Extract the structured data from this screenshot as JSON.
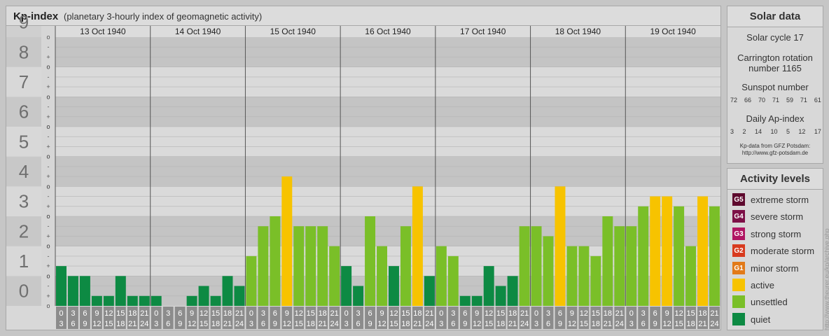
{
  "kp_panel": {
    "title": "Kp-index",
    "subtitle": "(planetary 3-hourly index of geomagnetic activity)"
  },
  "chart_data": {
    "type": "bar",
    "title": "Kp-index",
    "subtitle": "(planetary 3-hourly index of geomagnetic activity)",
    "ylim": [
      0,
      9
    ],
    "y_major_ticks": [
      "0",
      "1",
      "2",
      "3",
      "4",
      "5",
      "6",
      "7",
      "8",
      "9"
    ],
    "y_minor_ticks": [
      "o",
      "+",
      "-",
      "o"
    ],
    "days": [
      "13 Oct 1940",
      "14 Oct 1940",
      "15 Oct 1940",
      "16 Oct 1940",
      "17 Oct 1940",
      "18 Oct 1940",
      "19 Oct 1940"
    ],
    "interval_labels": [
      [
        "0",
        "3"
      ],
      [
        "3",
        "6"
      ],
      [
        "6",
        "9"
      ],
      [
        "9",
        "12"
      ],
      [
        "12",
        "15"
      ],
      [
        "15",
        "18"
      ],
      [
        "18",
        "21"
      ],
      [
        "21",
        "24"
      ]
    ],
    "values": [
      [
        1.333,
        1,
        1,
        0.333,
        0.333,
        1,
        0.333,
        0.333
      ],
      [
        0.333,
        0,
        0,
        0.333,
        0.667,
        0.333,
        1,
        0.667
      ],
      [
        1.667,
        2.667,
        3,
        4.333,
        2.667,
        2.667,
        2.667,
        2
      ],
      [
        1.333,
        0.667,
        3,
        2,
        1.333,
        2.667,
        4,
        1
      ],
      [
        2,
        1.667,
        0.333,
        0.333,
        1.333,
        0.667,
        1,
        2.667
      ],
      [
        2.667,
        2.333,
        4,
        2,
        2,
        1.667,
        3,
        2.667
      ],
      [
        2.667,
        3.333,
        3.667,
        3.667,
        3.333,
        2,
        3.667,
        3.333
      ]
    ],
    "levels": [
      [
        "quiet",
        "quiet",
        "quiet",
        "quiet",
        "quiet",
        "quiet",
        "quiet",
        "quiet"
      ],
      [
        "quiet",
        "quiet",
        "quiet",
        "quiet",
        "quiet",
        "quiet",
        "quiet",
        "quiet"
      ],
      [
        "unsettled",
        "unsettled",
        "unsettled",
        "active",
        "unsettled",
        "unsettled",
        "unsettled",
        "unsettled"
      ],
      [
        "quiet",
        "quiet",
        "unsettled",
        "unsettled",
        "quiet",
        "unsettled",
        "active",
        "quiet"
      ],
      [
        "unsettled",
        "unsettled",
        "quiet",
        "quiet",
        "quiet",
        "quiet",
        "quiet",
        "unsettled"
      ],
      [
        "unsettled",
        "unsettled",
        "active",
        "unsettled",
        "unsettled",
        "unsettled",
        "unsettled",
        "unsettled"
      ],
      [
        "unsettled",
        "unsettled",
        "active",
        "active",
        "unsettled",
        "unsettled",
        "active",
        "unsettled"
      ]
    ],
    "colors": {
      "quiet": "#0d8a43",
      "unsettled": "#7abf28",
      "active": "#f7c300"
    }
  },
  "solar_data": {
    "heading": "Solar data",
    "solar_cycle": "Solar cycle 17",
    "carrington_line1": "Carrington rotation",
    "carrington_line2": "number 1165",
    "sunspot_heading": "Sunspot number",
    "sunspot_values": [
      "72",
      "66",
      "70",
      "71",
      "59",
      "71",
      "61"
    ],
    "ap_heading": "Daily Ap-index",
    "ap_values": [
      "3",
      "2",
      "14",
      "10",
      "5",
      "12",
      "17"
    ],
    "credit_line1": "Kp-data from GFZ Potsdam:",
    "credit_line2": "http://www.gfz-potsdam.de"
  },
  "activity_levels": {
    "heading": "Activity levels",
    "items": [
      {
        "badge": "G5",
        "label": "extreme storm",
        "color": "#5e0a2e"
      },
      {
        "badge": "G4",
        "label": "severe storm",
        "color": "#7d1047"
      },
      {
        "badge": "G3",
        "label": "strong storm",
        "color": "#b01562"
      },
      {
        "badge": "G2",
        "label": "moderate storm",
        "color": "#d83a1e"
      },
      {
        "badge": "G1",
        "label": "minor storm",
        "color": "#e27a19"
      },
      {
        "badge": "",
        "label": "active",
        "color": "#f7c300"
      },
      {
        "badge": "",
        "label": "unsettled",
        "color": "#7abf28"
      },
      {
        "badge": "",
        "label": "quiet",
        "color": "#0d8a43"
      }
    ]
  },
  "side_credit": "http://www.theurer.eu/kp/archive.php"
}
